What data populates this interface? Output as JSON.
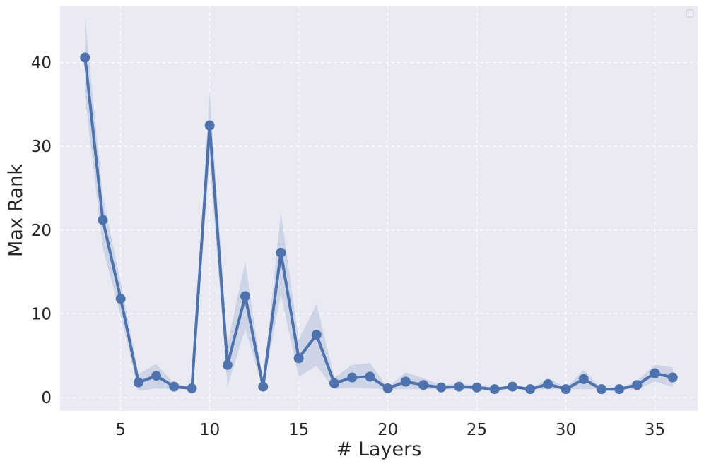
{
  "chart_data": {
    "type": "line",
    "title": "",
    "xlabel": "# Layers",
    "ylabel": "Max Rank",
    "xlim": [
      1.6,
      37.4
    ],
    "ylim": [
      -1.6,
      46.8
    ],
    "x_ticks": [
      5,
      10,
      15,
      20,
      25,
      30,
      35
    ],
    "y_ticks": [
      0,
      10,
      20,
      30,
      40
    ],
    "grid": true,
    "legend": "top-right (empty)",
    "colors": {
      "line": "#4c72b0",
      "band": "#c7d0e3",
      "background": "#eaeaf2",
      "grid": "#ffffff"
    },
    "series": [
      {
        "x": [
          3,
          4,
          5,
          6,
          7,
          8,
          9,
          10,
          11,
          12,
          13,
          14,
          15,
          16,
          17,
          18,
          19,
          20,
          21,
          22,
          23,
          24,
          25,
          26,
          27,
          28,
          29,
          30,
          31,
          32,
          33,
          34,
          35,
          36
        ],
        "values": [
          40.6,
          21.2,
          11.8,
          1.8,
          2.6,
          1.3,
          1.1,
          32.5,
          3.9,
          12.1,
          1.3,
          17.3,
          4.7,
          7.5,
          1.7,
          2.4,
          2.5,
          1.1,
          1.9,
          1.5,
          1.2,
          1.3,
          1.2,
          1.0,
          1.3,
          1.0,
          1.6,
          1.0,
          2.2,
          1.0,
          1.0,
          1.5,
          2.9,
          2.4
        ],
        "lower": [
          36.0,
          17.8,
          9.8,
          0.8,
          1.1,
          1.0,
          1.0,
          28.5,
          1.3,
          8.2,
          1.0,
          12.3,
          2.5,
          3.8,
          1.0,
          1.2,
          1.1,
          1.0,
          1.0,
          1.0,
          1.0,
          1.0,
          1.0,
          1.0,
          1.0,
          1.0,
          1.0,
          1.0,
          1.0,
          1.0,
          1.0,
          1.0,
          1.9,
          1.3
        ],
        "upper": [
          45.3,
          24.0,
          13.8,
          2.8,
          4.0,
          1.7,
          1.2,
          36.5,
          6.4,
          16.2,
          1.7,
          22.1,
          6.9,
          11.2,
          2.4,
          3.9,
          4.1,
          1.2,
          3.0,
          2.3,
          1.5,
          1.6,
          1.5,
          1.1,
          1.6,
          1.0,
          2.3,
          1.2,
          3.3,
          1.1,
          1.1,
          2.0,
          3.9,
          3.6
        ]
      }
    ]
  }
}
